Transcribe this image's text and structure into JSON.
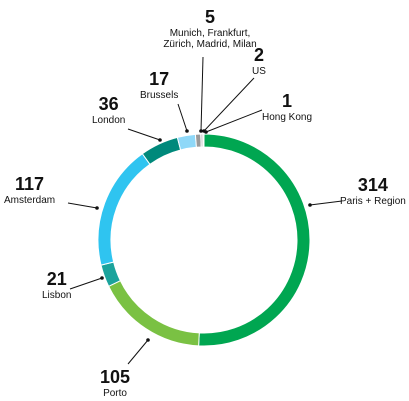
{
  "chart_data": {
    "type": "donut",
    "categories": [
      "Paris + Region",
      "Porto",
      "Lisbon",
      "Amsterdam",
      "London",
      "Brussels",
      "Munich, Frankfurt, Zürich, Madrid, Milan",
      "US",
      "Hong Kong"
    ],
    "values": [
      314,
      105,
      21,
      117,
      36,
      17,
      5,
      2,
      1
    ],
    "colors": [
      "#00a651",
      "#7ac143",
      "#1ba39c",
      "#2fc4f0",
      "#00897b",
      "#8fd8f8",
      "#9a9a9a",
      "#c8c8c8",
      "#5cb85c"
    ]
  }
}
